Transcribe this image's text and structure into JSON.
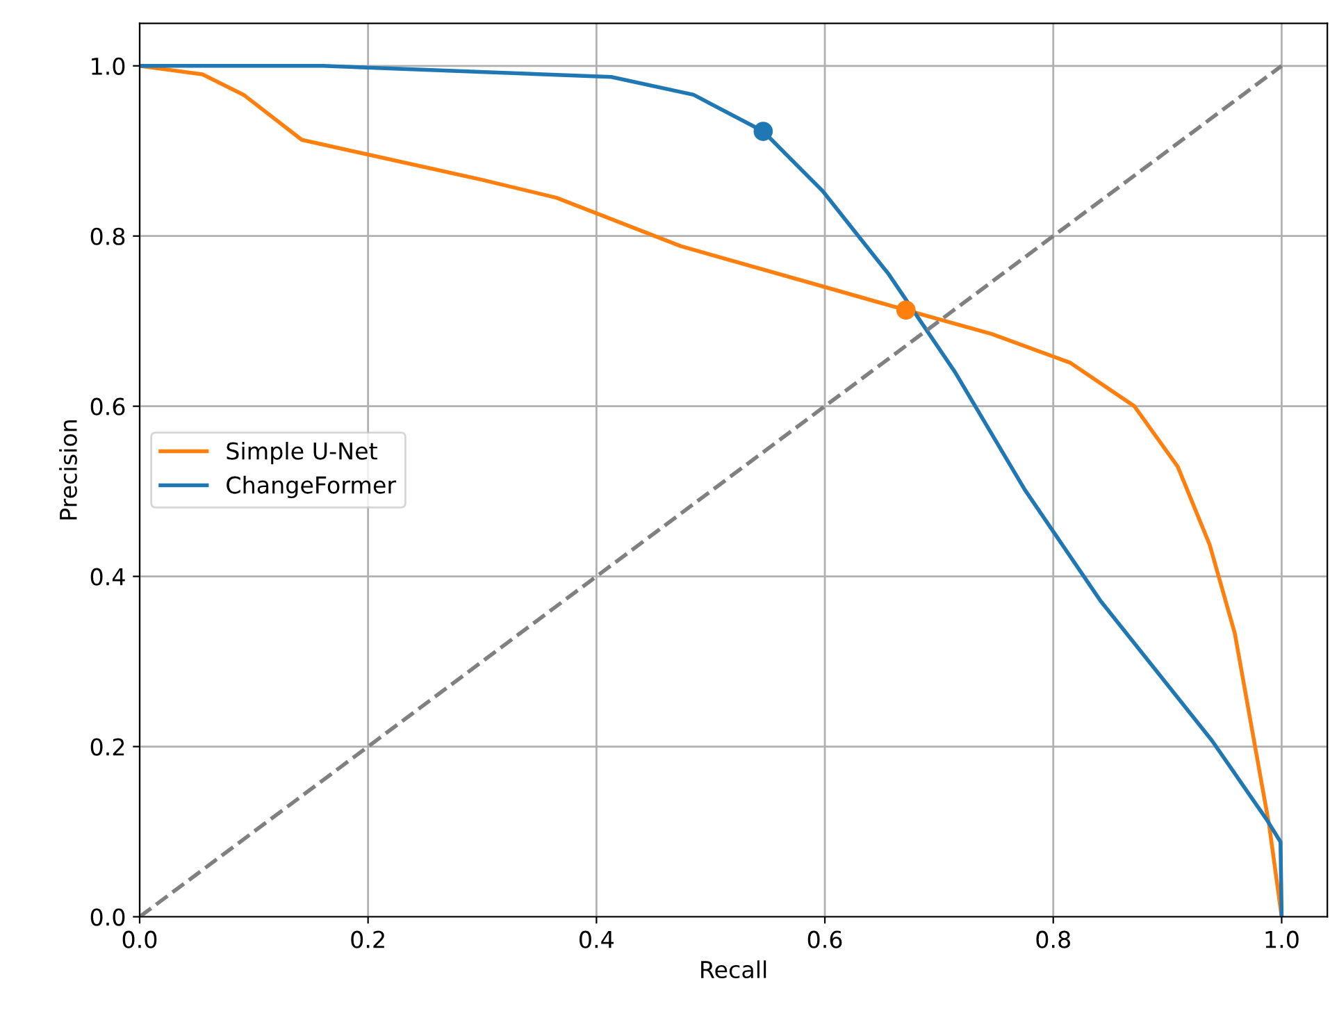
{
  "chart_data": {
    "type": "line",
    "xlabel": "Recall",
    "ylabel": "Precision",
    "xlim": [
      0,
      1.04
    ],
    "ylim": [
      0,
      1.05
    ],
    "xticks": [
      {
        "value": 0,
        "label": "0.0"
      },
      0.2,
      0.4,
      0.6,
      0.8,
      {
        "value": 1,
        "label": "1.0"
      }
    ],
    "yticks": [
      {
        "value": 0,
        "label": "0.0"
      },
      0.2,
      0.4,
      0.6,
      0.8,
      {
        "value": 1,
        "label": "1.0"
      }
    ],
    "grid": true,
    "legend": "center left",
    "series": [
      {
        "name": "Simple U-Net",
        "color": "#ff7f0e",
        "x": [
          0,
          0.055,
          0.091,
          0.142,
          0.3,
          0.365,
          0.474,
          0.595,
          0.671,
          0.746,
          0.815,
          0.871,
          0.909,
          0.937,
          0.959,
          0.989,
          1.0
        ],
        "values": [
          1.0,
          0.99,
          0.966,
          0.913,
          0.866,
          0.845,
          0.788,
          0.742,
          0.713,
          0.685,
          0.651,
          0.6,
          0.529,
          0.437,
          0.333,
          0.108,
          0
        ]
      },
      {
        "name": "ChangeFormer",
        "color": "#1f77b4",
        "x": [
          0,
          0.16,
          0.413,
          0.485,
          0.546,
          0.598,
          0.656,
          0.714,
          0.775,
          0.841,
          0.939,
          0.987,
          0.999,
          1.0
        ],
        "values": [
          1.0,
          1.0,
          0.987,
          0.966,
          0.923,
          0.853,
          0.755,
          0.64,
          0.502,
          0.372,
          0.207,
          0.114,
          0.088,
          0
        ]
      },
      {
        "type": "line",
        "color": "#808080",
        "line_style": "dashed",
        "x": [
          0,
          1
        ],
        "values": [
          0,
          1
        ]
      },
      {
        "type": "scatter",
        "color": "#ff7f0e",
        "marker": "circle",
        "x": [
          0.671
        ],
        "values": [
          0.713
        ]
      },
      {
        "type": "scatter",
        "color": "#1f77b4",
        "marker": "circle",
        "x": [
          0.546
        ],
        "values": [
          0.923
        ]
      }
    ]
  }
}
